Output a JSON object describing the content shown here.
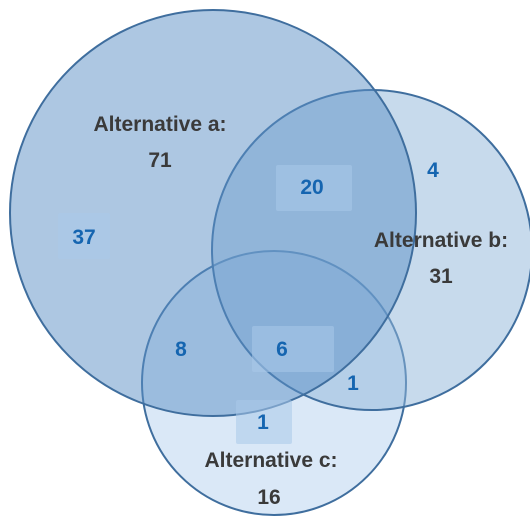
{
  "colors": {
    "circle_stroke": "#3f6e9e",
    "circle_a_fill": "#5b8fc6",
    "circle_b_fill": "#8fb5da",
    "circle_c_fill": "#bcd6f0",
    "region_value_text": "#1565b0",
    "region_highlight": "#aac9ea",
    "label_text": "#3a3a3a"
  },
  "sets": {
    "a": {
      "label": "Alternative a:",
      "total": "71"
    },
    "b": {
      "label": "Alternative b:",
      "total": "31"
    },
    "c": {
      "label": "Alternative c:",
      "total": "16"
    }
  },
  "regions": {
    "a_only": "37",
    "b_only": "4",
    "c_only": "1",
    "ab_only": "20",
    "ac_only": "8",
    "bc_only": "1",
    "abc": "6"
  }
}
